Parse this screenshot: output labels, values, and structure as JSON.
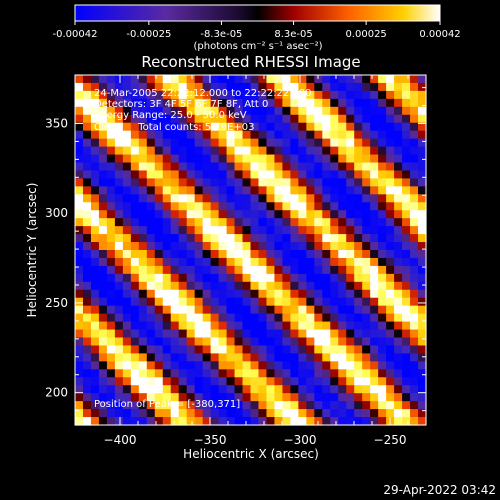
{
  "chart_data": {
    "type": "heatmap",
    "title": "Reconstructed RHESSI Image",
    "xlabel": "Heliocentric X (arcsec)",
    "ylabel": "Heliocentric Y (arcsec)",
    "xlim": [
      -425,
      -230
    ],
    "ylim": [
      182,
      377
    ],
    "x_ticks": [
      -400,
      -350,
      -300,
      -250
    ],
    "y_ticks": [
      200,
      250,
      300,
      350
    ],
    "colorbar": {
      "range": [
        -0.00042,
        0.00042
      ],
      "tick_values": [
        -0.00042,
        -0.00025,
        -8.3e-05,
        8.3e-05,
        0.00025,
        0.00042
      ],
      "tick_labels": [
        "-0.00042",
        "-0.00025",
        "-8.3e-05",
        "8.3e-05",
        "0.00025",
        "0.00042"
      ],
      "unit_label": "(photons cm⁻² s⁻¹ asec⁻²)"
    },
    "info_lines": [
      "24-Mar-2005 22:22:12.000 to 22:22:22.000",
      "Detectors: 3F 4F 5F 6F 7F 8F, Att 0",
      "Energy Range: 25.0 - 50.0 keV",
      "Clean     Total counts: 5.79E+03"
    ],
    "peak_label": "Position of Peak = [-380,371]",
    "colors": {
      "negative_low": "#0000ff",
      "negative_mid": "#5a2a9a",
      "zero": "#000000",
      "positive_low": "#b00000",
      "positive_mid": "#ff8000",
      "positive_high": "#ffff40",
      "max": "#ffffff"
    }
  },
  "footer": {
    "timestamp": "29-Apr-2022 03:42"
  }
}
